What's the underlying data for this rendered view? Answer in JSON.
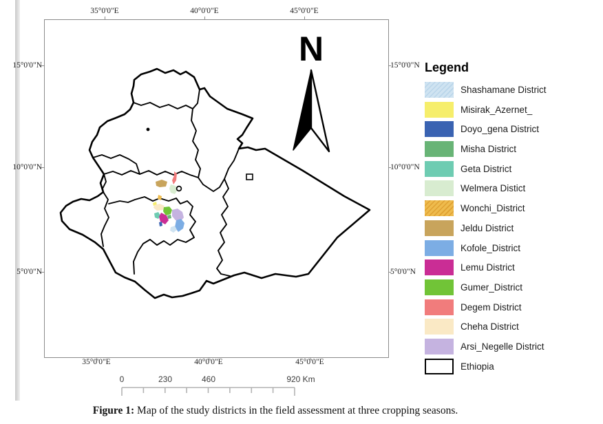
{
  "figure": {
    "caption_label": "Figure 1:",
    "caption_text": " Map of the study districts in the field assessment at three cropping seasons."
  },
  "map": {
    "north_label": "N",
    "outline_color": "#000000",
    "axes": {
      "top": [
        "35°0'0\"E",
        "40°0'0\"E",
        "45°0'0\"E"
      ],
      "bottom": [
        "35°0'0\"E",
        "40°0'0\"E",
        "45°0'0\"E"
      ],
      "left": [
        "15°0'0\"N",
        "10°0'0\"N",
        "5°0'0\"N"
      ],
      "right": [
        "15°0'0\"N",
        "10°0'0\"N",
        "5°0'0\"N"
      ]
    }
  },
  "legend": {
    "title": "Legend",
    "items": [
      {
        "key": "shashamane",
        "label": "Shashamane District",
        "color": "#cfe3f1",
        "hatch": true,
        "hatch_color": "#b9d5ea"
      },
      {
        "key": "misirak",
        "label": "Misirak_Azernet_",
        "color": "#f6ee6b"
      },
      {
        "key": "doyo_gena",
        "label": "Doyo_gena District",
        "color": "#3a63b2"
      },
      {
        "key": "misha",
        "label": "Misha District",
        "color": "#68b476"
      },
      {
        "key": "geta",
        "label": "Geta District",
        "color": "#6eccb2"
      },
      {
        "key": "welmera",
        "label": "Welmera Distict",
        "color": "#d8ecd0"
      },
      {
        "key": "wonchi",
        "label": "Wonchi_District",
        "color": "#eebb4d",
        "hatch": true,
        "hatch_color": "#dfa032"
      },
      {
        "key": "jeldu",
        "label": "Jeldu District",
        "color": "#c8a45c"
      },
      {
        "key": "kofole",
        "label": "Kofole_District",
        "color": "#7cade4"
      },
      {
        "key": "lemu",
        "label": "Lemu District",
        "color": "#ca2d95"
      },
      {
        "key": "gumer",
        "label": "Gumer_District",
        "color": "#71c437"
      },
      {
        "key": "degem",
        "label": "Degem District",
        "color": "#f17c7c"
      },
      {
        "key": "cheha",
        "label": "Cheha District",
        "color": "#fae9c5"
      },
      {
        "key": "arsi_negelle",
        "label": "Arsi_Negelle District",
        "color": "#c5b3e0"
      },
      {
        "key": "ethiopia",
        "label": "Ethiopia",
        "color": "#ffffff",
        "outline": true
      }
    ]
  },
  "scalebar": {
    "labels": [
      "0",
      "230",
      "460",
      "920 Km"
    ]
  }
}
